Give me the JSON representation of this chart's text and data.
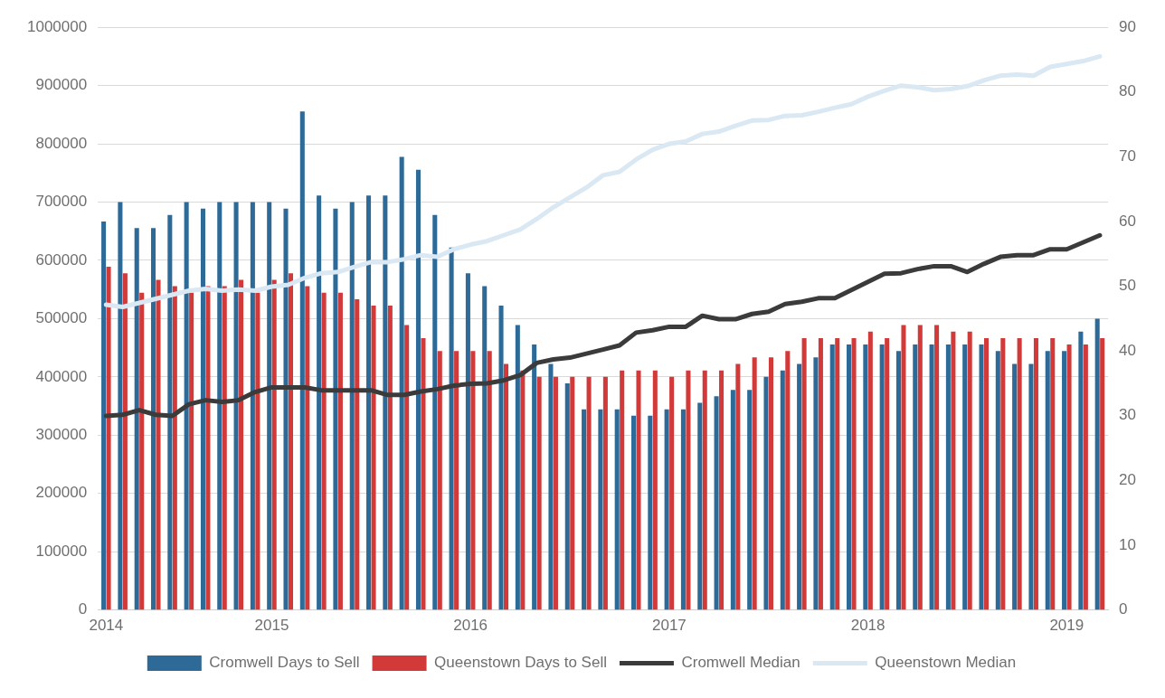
{
  "chart_data": {
    "type": "bar",
    "categories": [
      "2014",
      null,
      null,
      null,
      null,
      null,
      null,
      null,
      null,
      null,
      "2015",
      null,
      null,
      null,
      null,
      null,
      null,
      null,
      null,
      null,
      null,
      null,
      "2016",
      null,
      null,
      null,
      null,
      null,
      null,
      null,
      null,
      null,
      null,
      null,
      "2017",
      null,
      null,
      null,
      null,
      null,
      null,
      null,
      null,
      null,
      null,
      null,
      "2018",
      null,
      null,
      null,
      null,
      null,
      null,
      null,
      null,
      null,
      null,
      null,
      "2019",
      null,
      null
    ],
    "series": [
      {
        "name": "Cromwell Days to Sell",
        "axis": "y2",
        "color": "#2d6a97",
        "values": [
          60,
          63,
          59,
          59,
          61,
          63,
          62,
          63,
          63,
          63,
          63,
          62,
          77,
          64,
          62,
          63,
          64,
          64,
          70,
          68,
          61,
          56,
          52,
          50,
          47,
          44,
          41,
          38,
          35,
          31,
          31,
          31,
          30,
          30,
          31,
          31,
          32,
          33,
          34,
          34,
          36,
          37,
          38,
          39,
          41,
          41,
          41,
          41,
          40,
          41,
          41,
          41,
          41,
          41,
          40,
          38,
          38,
          40,
          40,
          43,
          45
        ]
      },
      {
        "name": "Queenstown Days to Sell",
        "axis": "y2",
        "color": "#d23a3a",
        "values": [
          53,
          52,
          49,
          51,
          50,
          49,
          50,
          50,
          51,
          49,
          51,
          52,
          50,
          49,
          49,
          48,
          47,
          47,
          44,
          42,
          40,
          40,
          40,
          40,
          38,
          37,
          36,
          36,
          36,
          36,
          36,
          37,
          37,
          37,
          36,
          37,
          37,
          37,
          38,
          39,
          39,
          40,
          42,
          42,
          42,
          42,
          43,
          42,
          44,
          44,
          44,
          43,
          43,
          42,
          42,
          42,
          42,
          42,
          41,
          41,
          42
        ]
      },
      {
        "name": "Cromwell Median",
        "type": "line",
        "color": "#3b3b3b",
        "values": [
          333000,
          335000,
          343000,
          335000,
          333000,
          353000,
          360000,
          357000,
          360000,
          374000,
          382000,
          382000,
          382000,
          377000,
          377000,
          377000,
          377000,
          369000,
          369000,
          375000,
          379000,
          385000,
          388000,
          389000,
          394000,
          403000,
          424000,
          430000,
          433000,
          440000,
          447000,
          454000,
          476000,
          480000,
          486000,
          486000,
          505000,
          499000,
          499000,
          508000,
          512000,
          525000,
          529000,
          535000,
          535000,
          549000,
          563000,
          577000,
          578000,
          585000,
          590000,
          590000,
          580000,
          594000,
          606000,
          609000,
          609000,
          619000,
          619000,
          631000,
          643000
        ]
      },
      {
        "name": "Queenstown Median",
        "type": "line",
        "color": "#dae8f3",
        "values": [
          524000,
          520000,
          527000,
          534000,
          541000,
          548000,
          551000,
          548000,
          550000,
          548000,
          555000,
          558000,
          570000,
          578000,
          580000,
          589000,
          597000,
          597000,
          602000,
          609000,
          606000,
          619000,
          627000,
          633000,
          643000,
          653000,
          671000,
          691000,
          708000,
          725000,
          746000,
          752000,
          773000,
          790000,
          800000,
          804000,
          817000,
          821000,
          831000,
          840000,
          841000,
          848000,
          849000,
          855000,
          862000,
          868000,
          881000,
          891000,
          900000,
          897000,
          892000,
          894000,
          899000,
          909000,
          917000,
          919000,
          917000,
          932000,
          937000,
          942000,
          950000
        ]
      }
    ],
    "ylim": [
      0,
      1000000
    ],
    "yticks": [
      0,
      100000,
      200000,
      300000,
      400000,
      500000,
      600000,
      700000,
      800000,
      900000,
      1000000
    ],
    "y2lim": [
      0,
      90
    ],
    "y2ticks": [
      0,
      10,
      20,
      30,
      40,
      50,
      60,
      70,
      80,
      90
    ],
    "grid": "y",
    "legend": "bottom",
    "marker": "none"
  }
}
